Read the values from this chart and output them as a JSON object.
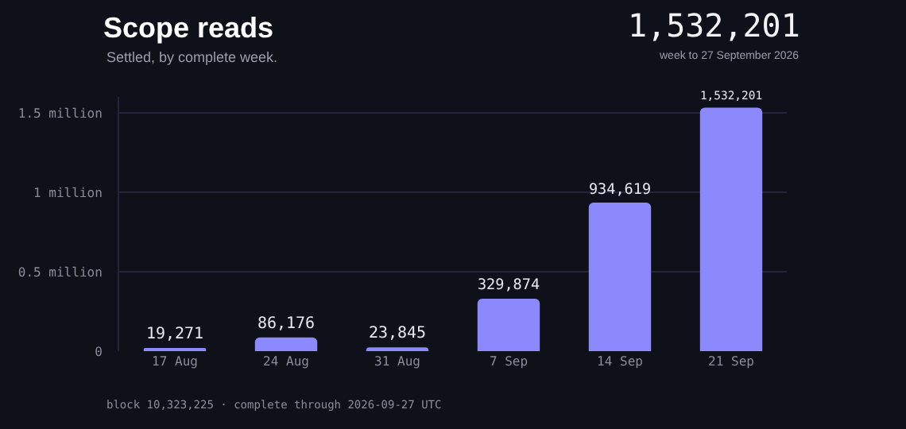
{
  "chart_data": {
    "type": "bar",
    "title": "Scope reads",
    "subtitle": "Settled, by complete week.",
    "annotations": [
      "1,532,201",
      "week to 27 September 2026",
      "block 10,323,225 · complete through 2026-09-27 UTC"
    ],
    "categories": [
      "17 Aug",
      "24 Aug",
      "31 Aug",
      "7 Sep",
      "14 Sep",
      "21 Sep"
    ],
    "values": [
      19271,
      86176,
      23845,
      329874,
      934619,
      1532201
    ],
    "value_labels": [
      "19,271",
      "86,176",
      "23,845",
      "329,874",
      "934,619",
      "1,532,201"
    ],
    "color": "#8b89fc",
    "ylim": [
      0,
      1600000
    ],
    "yticks": [
      0,
      {
        "value": 500000,
        "label": "0.5 million"
      },
      {
        "value": 1000000,
        "label": "1 million"
      },
      {
        "value": 1500000,
        "label": "1.5 million"
      }
    ],
    "grid": "y"
  }
}
